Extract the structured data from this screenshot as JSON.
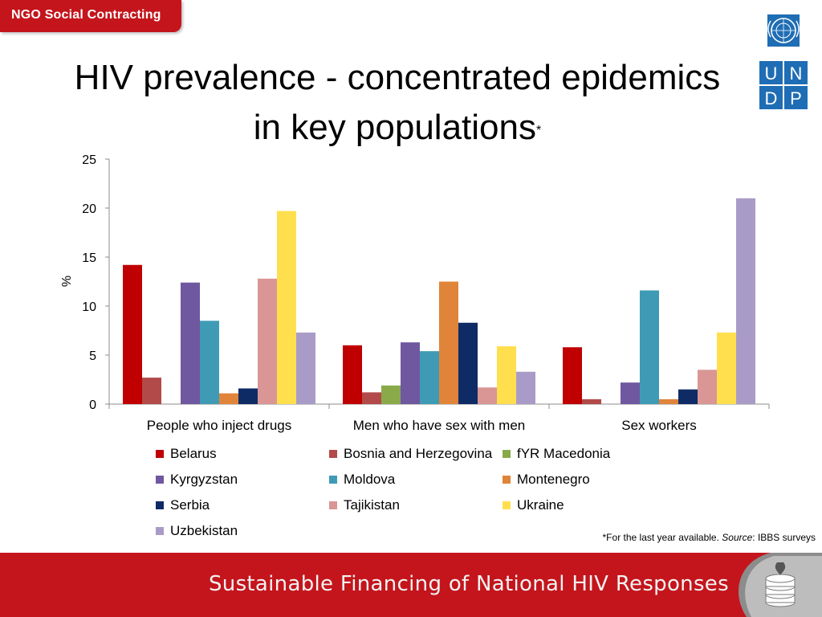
{
  "header": {
    "tab_label": "NGO Social Contracting"
  },
  "logo": {
    "letters": [
      "U",
      "N",
      "D",
      "P"
    ],
    "icon": "un-emblem-icon"
  },
  "title": {
    "line1": "HIV prevalence - concentrated epidemics",
    "line2": "in key populations",
    "marker": "*"
  },
  "chart_data": {
    "type": "bar",
    "title": "",
    "xlabel": "",
    "ylabel": "%",
    "ylim": [
      0,
      25
    ],
    "yticks": [
      0,
      5,
      10,
      15,
      20,
      25
    ],
    "categories": [
      "People who inject drugs",
      "Men who have sex with men",
      "Sex workers"
    ],
    "series": [
      {
        "name": "Belarus",
        "color": "#c00000",
        "values": [
          14.2,
          6.0,
          5.8
        ]
      },
      {
        "name": "Bosnia and Herzegovina",
        "color": "#b24a4a",
        "values": [
          2.7,
          1.2,
          0.5
        ]
      },
      {
        "name": "fYR Macedonia",
        "color": "#8aaa4a",
        "values": [
          null,
          1.9,
          null
        ]
      },
      {
        "name": "Kyrgyzstan",
        "color": "#6f58a0",
        "values": [
          12.4,
          6.3,
          2.2
        ]
      },
      {
        "name": "Moldova",
        "color": "#3f9bb5",
        "values": [
          8.5,
          5.4,
          11.6
        ]
      },
      {
        "name": "Montenegro",
        "color": "#e0843a",
        "values": [
          1.1,
          12.5,
          0.5
        ]
      },
      {
        "name": "Serbia",
        "color": "#0f2b66",
        "values": [
          1.6,
          8.3,
          1.5
        ]
      },
      {
        "name": "Tajikistan",
        "color": "#d99694",
        "values": [
          12.8,
          1.7,
          3.5
        ]
      },
      {
        "name": "Ukraine",
        "color": "#ffdf4d",
        "values": [
          19.7,
          5.9,
          7.3
        ]
      },
      {
        "name": "Uzbekistan",
        "color": "#a99bc8",
        "values": [
          7.3,
          3.3,
          21.0
        ]
      }
    ],
    "legend_position": "bottom"
  },
  "footnote": {
    "prefix": "*For the last year available. ",
    "source_label": "Source",
    "suffix": ": IBBS surveys"
  },
  "footer": {
    "text": "Sustainable Financing of National HIV Responses",
    "badge_icon": "stacked-coins-ribbon-icon"
  },
  "colors": {
    "brand_red": "#c4151c",
    "undp_blue": "#1f6db4"
  }
}
